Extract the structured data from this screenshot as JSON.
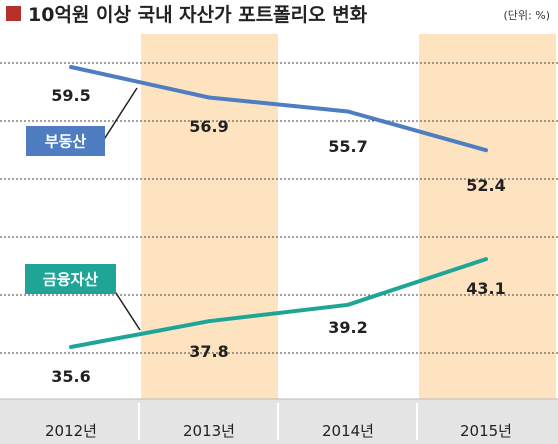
{
  "title": "10억원 이상 국내 자산가 포트폴리오 변화",
  "unit": "(단위: %)",
  "colors": {
    "title_marker": "#b5312b",
    "shade": "#fde3c0",
    "real_estate": "#4e7dc2",
    "financial": "#1fa596",
    "axis_bar": "#e5e5e5"
  },
  "chart_data": {
    "type": "line",
    "categories": [
      "2012년",
      "2013년",
      "2014년",
      "2015년"
    ],
    "series": [
      {
        "name": "부동산",
        "values": [
          59.5,
          56.9,
          55.7,
          52.4
        ]
      },
      {
        "name": "금융자산",
        "values": [
          35.6,
          37.8,
          39.2,
          43.1
        ]
      }
    ],
    "value_labels": [
      [
        "59.5",
        "56.9",
        "55.7",
        "52.4"
      ],
      [
        "35.6",
        "37.8",
        "39.2",
        "43.1"
      ]
    ],
    "ylim": [
      34,
      65
    ],
    "grid": true,
    "shaded_categories": [
      "2013년",
      "2015년"
    ]
  }
}
